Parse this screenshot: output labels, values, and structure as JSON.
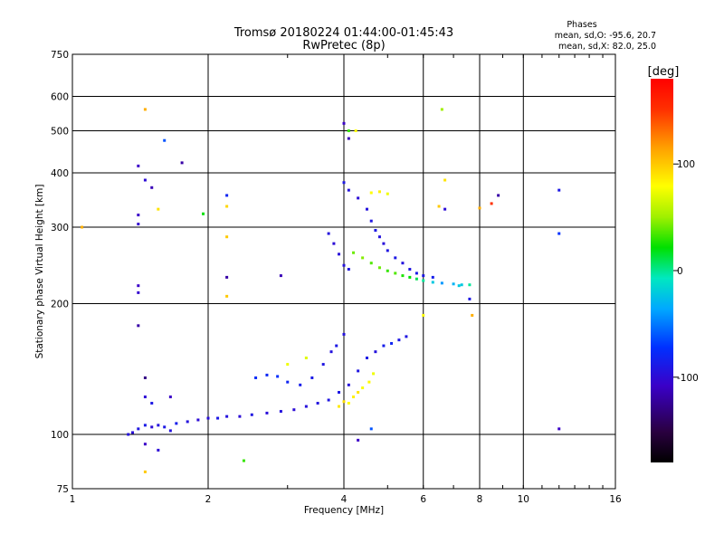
{
  "chart_data": {
    "type": "scatter",
    "title": "Tromsø 20180224 01:44:00-01:45:43",
    "subtitle": "RwPretec (8p)",
    "stats": {
      "heading": "Phases",
      "line1": "mean, sd,O: -95.6, 20.7",
      "line2": "mean, sd,X: 82.0, 25.0"
    },
    "xlabel": "Frequency [MHz]",
    "ylabel": "Stationary phase Virtual Height [km]",
    "x_scale": "log2",
    "y_scale": "log",
    "xlim": [
      1,
      16
    ],
    "ylim": [
      75,
      750
    ],
    "x_ticks": [
      1,
      2,
      4,
      6,
      8,
      10,
      16
    ],
    "x_tick_labels": [
      "1",
      "2",
      "4",
      "6",
      "8",
      "10",
      "16"
    ],
    "y_ticks": [
      75,
      100,
      200,
      300,
      400,
      500,
      600,
      750
    ],
    "y_tick_labels": [
      "75",
      "100",
      "200",
      "300",
      "400",
      "500",
      "600",
      "750"
    ],
    "grid": true,
    "colorbar": {
      "label": "[deg]",
      "range": [
        -180,
        180
      ],
      "ticks": [
        100,
        0,
        -100
      ],
      "tick_labels": [
        "100",
        "0",
        "-100"
      ]
    },
    "series": [
      {
        "color_mode": "phase",
        "points": [
          [
            1.33,
            100,
            -95
          ],
          [
            1.36,
            101,
            -98
          ],
          [
            1.4,
            103,
            -92
          ],
          [
            1.45,
            105,
            -88
          ],
          [
            1.5,
            104,
            -100
          ],
          [
            1.55,
            105,
            -95
          ],
          [
            1.6,
            104,
            -90
          ],
          [
            1.7,
            106,
            -85
          ],
          [
            1.8,
            107,
            -95
          ],
          [
            1.9,
            108,
            -100
          ],
          [
            2.0,
            109,
            -98
          ],
          [
            2.1,
            109,
            -90
          ],
          [
            2.2,
            110,
            -95
          ],
          [
            2.35,
            110,
            -100
          ],
          [
            2.5,
            111,
            -92
          ],
          [
            2.7,
            112,
            -98
          ],
          [
            2.9,
            113,
            -95
          ],
          [
            3.1,
            114,
            -100
          ],
          [
            3.3,
            116,
            -96
          ],
          [
            3.5,
            118,
            -94
          ],
          [
            3.7,
            120,
            -92
          ],
          [
            3.9,
            125,
            -90
          ],
          [
            4.1,
            130,
            -96
          ],
          [
            4.3,
            140,
            -92
          ],
          [
            4.5,
            150,
            -90
          ],
          [
            4.7,
            155,
            -95
          ],
          [
            4.9,
            160,
            -85
          ],
          [
            5.1,
            162,
            -80
          ],
          [
            5.3,
            165,
            -90
          ],
          [
            5.5,
            168,
            -92
          ],
          [
            2.55,
            135,
            -75
          ],
          [
            2.7,
            137,
            -78
          ],
          [
            2.85,
            136,
            -72
          ],
          [
            3.0,
            132,
            -80
          ],
          [
            3.2,
            130,
            -85
          ],
          [
            3.4,
            135,
            -88
          ],
          [
            3.6,
            145,
            -92
          ],
          [
            3.75,
            155,
            -95
          ],
          [
            3.85,
            160,
            -90
          ],
          [
            4.0,
            170,
            -95
          ],
          [
            4.1,
            118,
            80
          ],
          [
            4.2,
            122,
            85
          ],
          [
            4.3,
            125,
            90
          ],
          [
            4.4,
            128,
            78
          ],
          [
            4.55,
            132,
            82
          ],
          [
            4.65,
            138,
            75
          ],
          [
            3.9,
            116,
            88
          ],
          [
            4.0,
            119,
            92
          ],
          [
            3.3,
            150,
            70
          ],
          [
            3.0,
            145,
            75
          ],
          [
            3.7,
            290,
            -95
          ],
          [
            3.8,
            275,
            -100
          ],
          [
            3.9,
            260,
            -98
          ],
          [
            4.0,
            245,
            -95
          ],
          [
            4.1,
            240,
            -92
          ],
          [
            4.0,
            380,
            -90
          ],
          [
            4.1,
            365,
            -95
          ],
          [
            4.3,
            350,
            -100
          ],
          [
            4.5,
            330,
            -95
          ],
          [
            4.6,
            310,
            -92
          ],
          [
            4.7,
            295,
            -90
          ],
          [
            4.8,
            285,
            -95
          ],
          [
            4.9,
            275,
            -98
          ],
          [
            5.0,
            265,
            -92
          ],
          [
            5.2,
            255,
            -90
          ],
          [
            5.4,
            248,
            -95
          ],
          [
            5.6,
            240,
            -92
          ],
          [
            5.8,
            235,
            -88
          ],
          [
            6.0,
            232,
            -90
          ],
          [
            6.3,
            230,
            -85
          ],
          [
            4.2,
            262,
            40
          ],
          [
            4.4,
            255,
            45
          ],
          [
            4.6,
            248,
            35
          ],
          [
            4.8,
            242,
            40
          ],
          [
            5.0,
            238,
            30
          ],
          [
            5.2,
            235,
            35
          ],
          [
            5.4,
            232,
            25
          ],
          [
            5.6,
            230,
            20
          ],
          [
            5.8,
            228,
            10
          ],
          [
            6.0,
            226,
            0
          ],
          [
            6.3,
            224,
            -20
          ],
          [
            6.6,
            223,
            -40
          ],
          [
            7.0,
            222,
            -30
          ],
          [
            7.3,
            221,
            -20
          ],
          [
            7.6,
            221,
            0
          ],
          [
            4.6,
            360,
            80
          ],
          [
            4.8,
            362,
            85
          ],
          [
            5.0,
            358,
            75
          ],
          [
            6.6,
            560,
            50
          ],
          [
            1.45,
            560,
            110
          ],
          [
            1.6,
            475,
            -60
          ],
          [
            1.4,
            415,
            -110
          ],
          [
            1.75,
            422,
            -120
          ],
          [
            1.45,
            385,
            -100
          ],
          [
            1.5,
            370,
            -115
          ],
          [
            1.4,
            320,
            -110
          ],
          [
            1.4,
            305,
            -105
          ],
          [
            1.05,
            300,
            110
          ],
          [
            1.55,
            330,
            90
          ],
          [
            2.2,
            355,
            -80
          ],
          [
            2.2,
            335,
            95
          ],
          [
            2.2,
            285,
            100
          ],
          [
            2.2,
            230,
            -120
          ],
          [
            2.2,
            208,
            100
          ],
          [
            2.9,
            232,
            -115
          ],
          [
            1.95,
            322,
            20
          ],
          [
            1.4,
            220,
            -110
          ],
          [
            1.4,
            212,
            -105
          ],
          [
            1.4,
            178,
            -120
          ],
          [
            1.45,
            135,
            -130
          ],
          [
            1.45,
            122,
            -100
          ],
          [
            1.5,
            118,
            -90
          ],
          [
            1.65,
            122,
            -110
          ],
          [
            1.65,
            102,
            -95
          ],
          [
            1.45,
            95,
            -110
          ],
          [
            1.55,
            92,
            -100
          ],
          [
            1.45,
            82,
            100
          ],
          [
            2.4,
            87,
            30
          ],
          [
            4.3,
            97,
            -110
          ],
          [
            4.6,
            103,
            -60
          ],
          [
            7.2,
            220,
            -20
          ],
          [
            7.6,
            205,
            -90
          ],
          [
            7.7,
            188,
            110
          ],
          [
            8.0,
            332,
            110
          ],
          [
            8.5,
            340,
            150
          ],
          [
            8.8,
            355,
            -120
          ],
          [
            6.7,
            385,
            90
          ],
          [
            6.5,
            335,
            100
          ],
          [
            6.7,
            330,
            -100
          ],
          [
            12.0,
            365,
            -90
          ],
          [
            12.0,
            290,
            -70
          ],
          [
            12.0,
            103,
            -110
          ],
          [
            6.0,
            188,
            80
          ],
          [
            4.0,
            520,
            -110
          ],
          [
            4.1,
            480,
            -115
          ],
          [
            4.1,
            500,
            30
          ],
          [
            4.25,
            500,
            80
          ]
        ]
      }
    ]
  }
}
